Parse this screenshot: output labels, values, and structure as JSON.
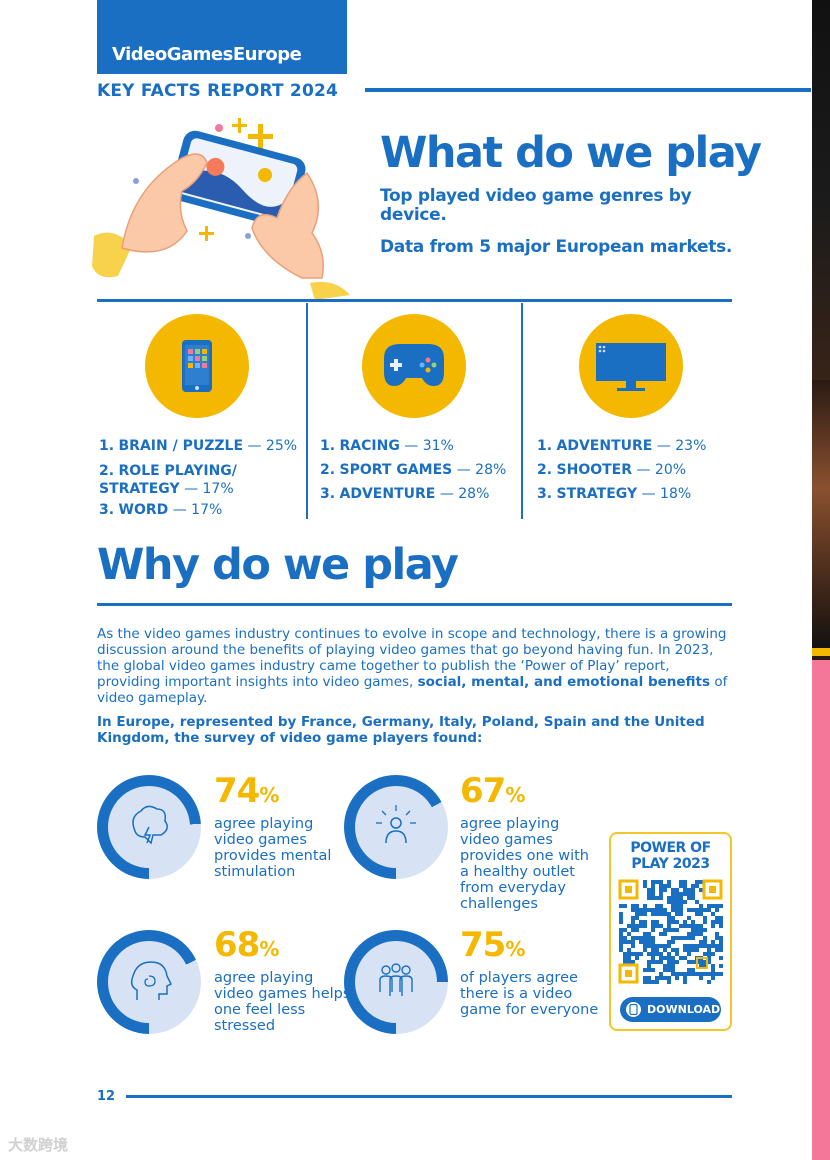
{
  "header": {
    "brand": "VideoGamesEurope",
    "report_title": "KEY FACTS REPORT 2024"
  },
  "hero": {
    "title": "What do we play",
    "subtitle1": "Top played video game genres by device.",
    "subtitle2": "Data from 5 major European markets."
  },
  "devices": [
    {
      "icon": "mobile-phone-icon",
      "genres": [
        {
          "rank": "1.",
          "name": "BRAIN / PUZZLE",
          "pct": "25%"
        },
        {
          "rank": "2.",
          "name": "ROLE PLAYING/ STRATEGY",
          "pct": "17%"
        },
        {
          "rank": "3.",
          "name": "WORD",
          "pct": "17%"
        }
      ]
    },
    {
      "icon": "gamepad-icon",
      "genres": [
        {
          "rank": "1.",
          "name": "RACING",
          "pct": "31%"
        },
        {
          "rank": "2.",
          "name": "SPORT GAMES",
          "pct": "28%"
        },
        {
          "rank": "3.",
          "name": "ADVENTURE",
          "pct": "28%"
        }
      ]
    },
    {
      "icon": "monitor-icon",
      "genres": [
        {
          "rank": "1.",
          "name": "ADVENTURE",
          "pct": "23%"
        },
        {
          "rank": "2.",
          "name": "SHOOTER",
          "pct": "20%"
        },
        {
          "rank": "3.",
          "name": "STRATEGY",
          "pct": "18%"
        }
      ]
    }
  ],
  "why": {
    "title": "Why do we play",
    "body_start": "As the video games industry continues to evolve in scope and technology, there is a growing discussion around the benefits of playing video games that go beyond having fun. In 2023, the global video games industry came together to publish the ‘Power of Play’ report, providing important insights into video games, ",
    "body_bold": "social, mental, and emotional benefits",
    "body_end": " of video gameplay.",
    "survey_note": "In Europe, represented by France, Germany, Italy, Poland, Spain and the United Kingdom, the survey of video game players found:"
  },
  "stats": [
    {
      "value": 74,
      "num": "74",
      "unit": "%",
      "text": "agree playing video games provides mental stimulation",
      "icon": "brain-lightning-icon"
    },
    {
      "value": 67,
      "num": "67",
      "unit": "%",
      "text": "agree playing video games provides one with a healthy outlet from everyday challenges",
      "icon": "person-radiating-icon"
    },
    {
      "value": 68,
      "num": "68",
      "unit": "%",
      "text": "agree playing video games helps one feel less stressed",
      "icon": "head-swirl-icon"
    },
    {
      "value": 75,
      "num": "75",
      "unit": "%",
      "text": "of players agree there is a video game for everyone",
      "icon": "group-people-icon"
    }
  ],
  "qr": {
    "title": "POWER OF PLAY 2023",
    "download": "DOWNLOAD"
  },
  "footer": {
    "page_number": "12"
  },
  "watermark": "大数跨境",
  "colors": {
    "blue": "#1a6fc2",
    "yellow": "#f5b800",
    "ring_light": "#d7e3f4",
    "pink": "#f4779a"
  }
}
